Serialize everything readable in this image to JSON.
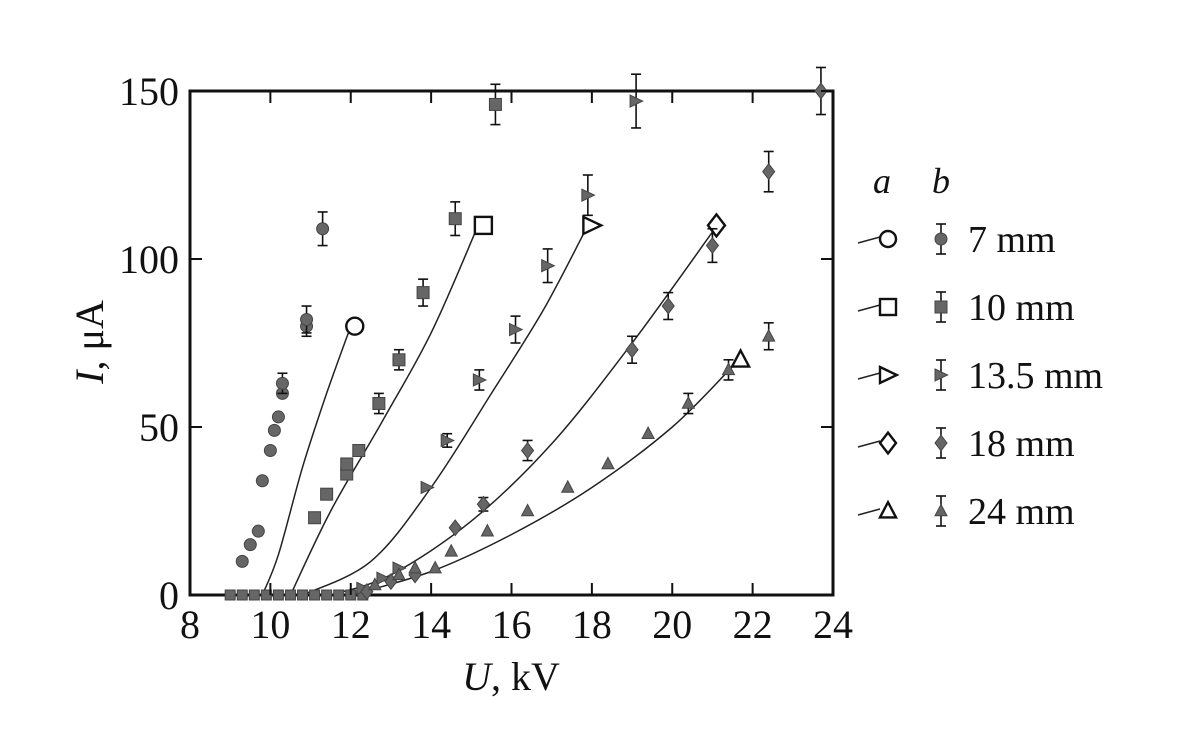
{
  "chart_data": {
    "type": "scatter",
    "xlabel_var": "U",
    "xlabel_unit": ", kV",
    "ylabel_var": "I",
    "ylabel_unit": ", μA",
    "xlim": [
      8,
      24
    ],
    "ylim": [
      0,
      150
    ],
    "xticks": [
      8,
      10,
      12,
      14,
      16,
      18,
      20,
      22,
      24
    ],
    "yticks": [
      0,
      50,
      100,
      150
    ],
    "grid": false,
    "legend_position": "right",
    "legend_headers": [
      "a",
      "b"
    ],
    "series": [
      {
        "name": "7 mm",
        "open_marker": "circle",
        "filled_marker": "circle",
        "curve": [
          [
            9.8,
            0
          ],
          [
            10.2,
            12
          ],
          [
            10.8,
            38
          ],
          [
            11.4,
            60
          ],
          [
            12.0,
            80
          ]
        ],
        "curve_end": [
          12.1,
          80
        ],
        "measured": [
          [
            9.3,
            10,
            0
          ],
          [
            9.5,
            15,
            0
          ],
          [
            9.7,
            19,
            0
          ],
          [
            9.8,
            34,
            0
          ],
          [
            10.0,
            43,
            0
          ],
          [
            10.1,
            49,
            0
          ],
          [
            10.2,
            53,
            0
          ],
          [
            10.3,
            60,
            0
          ],
          [
            10.3,
            63,
            3
          ],
          [
            10.9,
            80,
            3
          ],
          [
            10.9,
            82,
            4
          ],
          [
            11.3,
            109,
            5
          ]
        ]
      },
      {
        "name": "10 mm",
        "open_marker": "square",
        "filled_marker": "square",
        "curve": [
          [
            10.5,
            0
          ],
          [
            11.5,
            25
          ],
          [
            12.8,
            52
          ],
          [
            14.0,
            78
          ],
          [
            15.1,
            108
          ]
        ],
        "curve_end": [
          15.3,
          110
        ],
        "measured": [
          [
            11.1,
            23,
            0
          ],
          [
            11.4,
            30,
            0
          ],
          [
            11.9,
            36,
            0
          ],
          [
            11.9,
            39,
            0
          ],
          [
            12.2,
            43,
            0
          ],
          [
            12.7,
            57,
            3
          ],
          [
            13.2,
            70,
            3
          ],
          [
            13.8,
            90,
            4
          ],
          [
            14.6,
            112,
            5
          ],
          [
            15.6,
            146,
            6
          ]
        ]
      },
      {
        "name": "13.5 mm",
        "open_marker": "triangle-right",
        "filled_marker": "triangle-right",
        "curve": [
          [
            10.8,
            0
          ],
          [
            12.5,
            10
          ],
          [
            14.0,
            32
          ],
          [
            15.5,
            60
          ],
          [
            16.8,
            85
          ],
          [
            17.9,
            110
          ]
        ],
        "curve_end": [
          18.0,
          110
        ],
        "measured": [
          [
            12.3,
            2,
            0
          ],
          [
            12.8,
            5,
            0
          ],
          [
            13.2,
            8,
            0
          ],
          [
            13.9,
            32,
            0
          ],
          [
            14.4,
            46,
            2
          ],
          [
            15.2,
            64,
            3
          ],
          [
            16.1,
            79,
            4
          ],
          [
            16.9,
            98,
            5
          ],
          [
            17.9,
            119,
            6
          ],
          [
            19.1,
            147,
            8
          ]
        ]
      },
      {
        "name": "18 mm",
        "open_marker": "diamond",
        "filled_marker": "diamond",
        "curve": [
          [
            11.5,
            0
          ],
          [
            13.0,
            6
          ],
          [
            15.0,
            22
          ],
          [
            17.0,
            45
          ],
          [
            19.0,
            75
          ],
          [
            21.0,
            108
          ]
        ],
        "curve_end": [
          21.1,
          110
        ],
        "measured": [
          [
            12.4,
            1,
            0
          ],
          [
            13.0,
            4,
            0
          ],
          [
            13.6,
            6,
            0
          ],
          [
            14.6,
            20,
            0
          ],
          [
            15.3,
            27,
            2
          ],
          [
            16.4,
            43,
            3
          ],
          [
            19.0,
            73,
            4
          ],
          [
            19.9,
            86,
            4
          ],
          [
            21.0,
            104,
            5
          ],
          [
            22.4,
            126,
            6
          ],
          [
            23.7,
            150,
            7
          ]
        ]
      },
      {
        "name": "24 mm",
        "open_marker": "triangle-up",
        "filled_marker": "triangle-up",
        "curve": [
          [
            12.0,
            0
          ],
          [
            14.0,
            7
          ],
          [
            16.0,
            18
          ],
          [
            18.0,
            32
          ],
          [
            20.0,
            50
          ],
          [
            21.5,
            68
          ]
        ],
        "curve_end": [
          21.7,
          70
        ],
        "measured": [
          [
            12.6,
            3,
            0
          ],
          [
            13.2,
            6,
            0
          ],
          [
            13.6,
            8,
            0
          ],
          [
            14.1,
            8,
            0
          ],
          [
            14.5,
            13,
            0
          ],
          [
            15.4,
            19,
            0
          ],
          [
            16.4,
            25,
            0
          ],
          [
            17.4,
            32,
            0
          ],
          [
            18.4,
            39,
            0
          ],
          [
            19.4,
            48,
            0
          ],
          [
            20.4,
            57,
            3
          ],
          [
            21.4,
            67,
            3
          ],
          [
            22.4,
            77,
            4
          ]
        ]
      }
    ]
  }
}
